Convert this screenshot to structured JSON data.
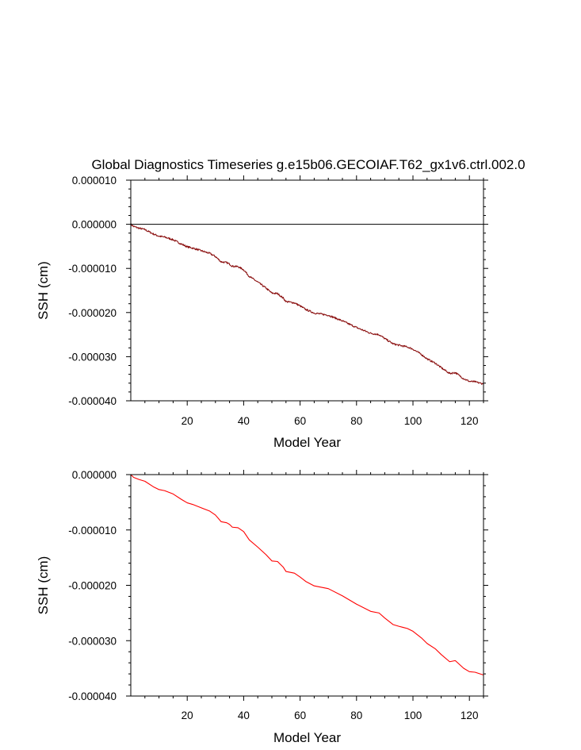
{
  "chart_data": [
    {
      "type": "line",
      "title": "Global Diagnostics Timeseries g.e15b06.GECOIAF.T62_gx1v6.ctrl.002.0",
      "xlabel": "Model Year",
      "ylabel": "SSH (cm)",
      "xlim": [
        0,
        125
      ],
      "ylim": [
        -4e-05,
        1e-05
      ],
      "xticks": [
        20,
        40,
        60,
        80,
        100,
        120
      ],
      "xtick_labels": [
        "20",
        "40",
        "60",
        "80",
        "100",
        "120"
      ],
      "yticks": [
        1e-05,
        0,
        -1e-05,
        -2e-05,
        -3e-05,
        -4e-05
      ],
      "ytick_labels": [
        "0.000010",
        "0.000000",
        "-0.000010",
        "-0.000020",
        "-0.000030",
        "-0.000040"
      ],
      "reference_line_y": 0,
      "grid": false,
      "series": [
        {
          "color": "#8b1010",
          "style": "monthly, noisy",
          "x": [
            0,
            1,
            3,
            5,
            8,
            10,
            12,
            15,
            18,
            20,
            22,
            25,
            28,
            30,
            32,
            34,
            35,
            36,
            38,
            40,
            42,
            45,
            48,
            50,
            52,
            54,
            55,
            58,
            60,
            62,
            65,
            70,
            75,
            80,
            85,
            88,
            90,
            93,
            95,
            98,
            100,
            103,
            105,
            108,
            110,
            113,
            115,
            118,
            120,
            122,
            125
          ],
          "y": [
            0.0,
            -5e-07,
            -9e-07,
            -1.2e-06,
            -2.2e-06,
            -2.7e-06,
            -2.9e-06,
            -3.5e-06,
            -4.5e-06,
            -5.1e-06,
            -5.4e-06,
            -6e-06,
            -6.6e-06,
            -7.3e-06,
            -8.5e-06,
            -8.7e-06,
            -9e-06,
            -9.5e-06,
            -9.6e-06,
            -1.03e-05,
            -1.18e-05,
            -1.31e-05,
            -1.45e-05,
            -1.56e-05,
            -1.57e-05,
            -1.67e-05,
            -1.75e-05,
            -1.78e-05,
            -1.85e-05,
            -1.93e-05,
            -2.01e-05,
            -2.06e-05,
            -2.19e-05,
            -2.34e-05,
            -2.47e-05,
            -2.5e-05,
            -2.59e-05,
            -2.71e-05,
            -2.74e-05,
            -2.78e-05,
            -2.83e-05,
            -2.95e-05,
            -3.05e-05,
            -3.15e-05,
            -3.25e-05,
            -3.38e-05,
            -3.36e-05,
            -3.5e-05,
            -3.56e-05,
            -3.57e-05,
            -3.62e-05
          ]
        }
      ]
    },
    {
      "type": "line",
      "xlabel": "Model Year",
      "ylabel": "SSH (cm)",
      "xlim": [
        0,
        125
      ],
      "ylim": [
        -4e-05,
        0.0
      ],
      "xticks": [
        20,
        40,
        60,
        80,
        100,
        120
      ],
      "xtick_labels": [
        "20",
        "40",
        "60",
        "80",
        "100",
        "120"
      ],
      "yticks": [
        0,
        -1e-05,
        -2e-05,
        -3e-05,
        -4e-05
      ],
      "ytick_labels": [
        "0.000000",
        "-0.000010",
        "-0.000020",
        "-0.000030",
        "-0.000040"
      ],
      "grid": false,
      "series": [
        {
          "color": "#ff0000",
          "style": "annual mean, smooth",
          "x": [
            0,
            1,
            3,
            5,
            8,
            10,
            12,
            15,
            18,
            20,
            22,
            25,
            28,
            30,
            32,
            34,
            35,
            36,
            38,
            40,
            42,
            45,
            48,
            50,
            52,
            54,
            55,
            58,
            60,
            62,
            65,
            70,
            75,
            80,
            85,
            88,
            90,
            93,
            95,
            98,
            100,
            103,
            105,
            108,
            110,
            113,
            115,
            118,
            120,
            122,
            125
          ],
          "y": [
            0.0,
            -5e-07,
            -9e-07,
            -1.2e-06,
            -2.2e-06,
            -2.7e-06,
            -2.9e-06,
            -3.5e-06,
            -4.5e-06,
            -5.1e-06,
            -5.4e-06,
            -6e-06,
            -6.6e-06,
            -7.3e-06,
            -8.5e-06,
            -8.7e-06,
            -9e-06,
            -9.5e-06,
            -9.6e-06,
            -1.03e-05,
            -1.18e-05,
            -1.31e-05,
            -1.45e-05,
            -1.56e-05,
            -1.57e-05,
            -1.67e-05,
            -1.75e-05,
            -1.78e-05,
            -1.85e-05,
            -1.93e-05,
            -2.01e-05,
            -2.06e-05,
            -2.19e-05,
            -2.34e-05,
            -2.47e-05,
            -2.5e-05,
            -2.59e-05,
            -2.71e-05,
            -2.74e-05,
            -2.78e-05,
            -2.83e-05,
            -2.95e-05,
            -3.05e-05,
            -3.15e-05,
            -3.25e-05,
            -3.38e-05,
            -3.36e-05,
            -3.5e-05,
            -3.56e-05,
            -3.57e-05,
            -3.62e-05
          ]
        }
      ]
    }
  ]
}
